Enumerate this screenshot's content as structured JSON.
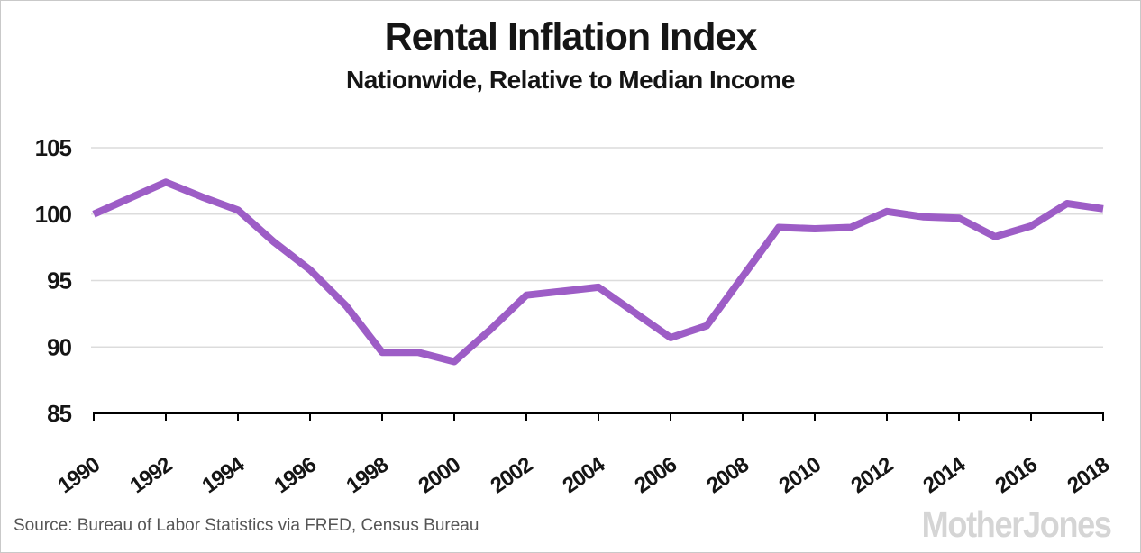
{
  "chart_data": {
    "type": "line",
    "title": "Rental Inflation Index",
    "subtitle": "Nationwide, Relative to Median Income",
    "xlabel": "",
    "ylabel": "",
    "x": [
      1990,
      1991,
      1992,
      1993,
      1994,
      1995,
      1996,
      1997,
      1998,
      1999,
      2000,
      2001,
      2002,
      2003,
      2004,
      2005,
      2006,
      2007,
      2008,
      2009,
      2010,
      2011,
      2012,
      2013,
      2014,
      2015,
      2016,
      2017,
      2018
    ],
    "series": [
      {
        "name": "Rental inflation index relative to median income",
        "values": [
          100.0,
          101.2,
          102.4,
          101.3,
          100.3,
          97.9,
          95.8,
          93.1,
          89.6,
          89.6,
          88.9,
          91.3,
          93.9,
          94.2,
          94.5,
          92.6,
          90.7,
          91.6,
          95.3,
          99.0,
          98.9,
          99.0,
          100.2,
          99.8,
          99.7,
          98.3,
          99.1,
          100.8,
          100.4
        ]
      }
    ],
    "ylim": [
      85,
      105
    ],
    "yticks": [
      85,
      90,
      95,
      100,
      105
    ],
    "xticks": [
      1990,
      1992,
      1994,
      1996,
      1998,
      2000,
      2002,
      2004,
      2006,
      2008,
      2010,
      2012,
      2014,
      2016,
      2018
    ],
    "grid": true,
    "legend": "none",
    "line_color": "#9d5dc6"
  },
  "footer": {
    "source": "Source: Bureau of Labor Statistics via FRED, Census Bureau",
    "brand": "MotherJones"
  },
  "colors": {
    "line": "#9d5dc6",
    "grid": "#dcdcdc",
    "axis": "#000000",
    "text": "#151515",
    "source_text": "#555555",
    "brand_gray": "#d5d5d5"
  }
}
